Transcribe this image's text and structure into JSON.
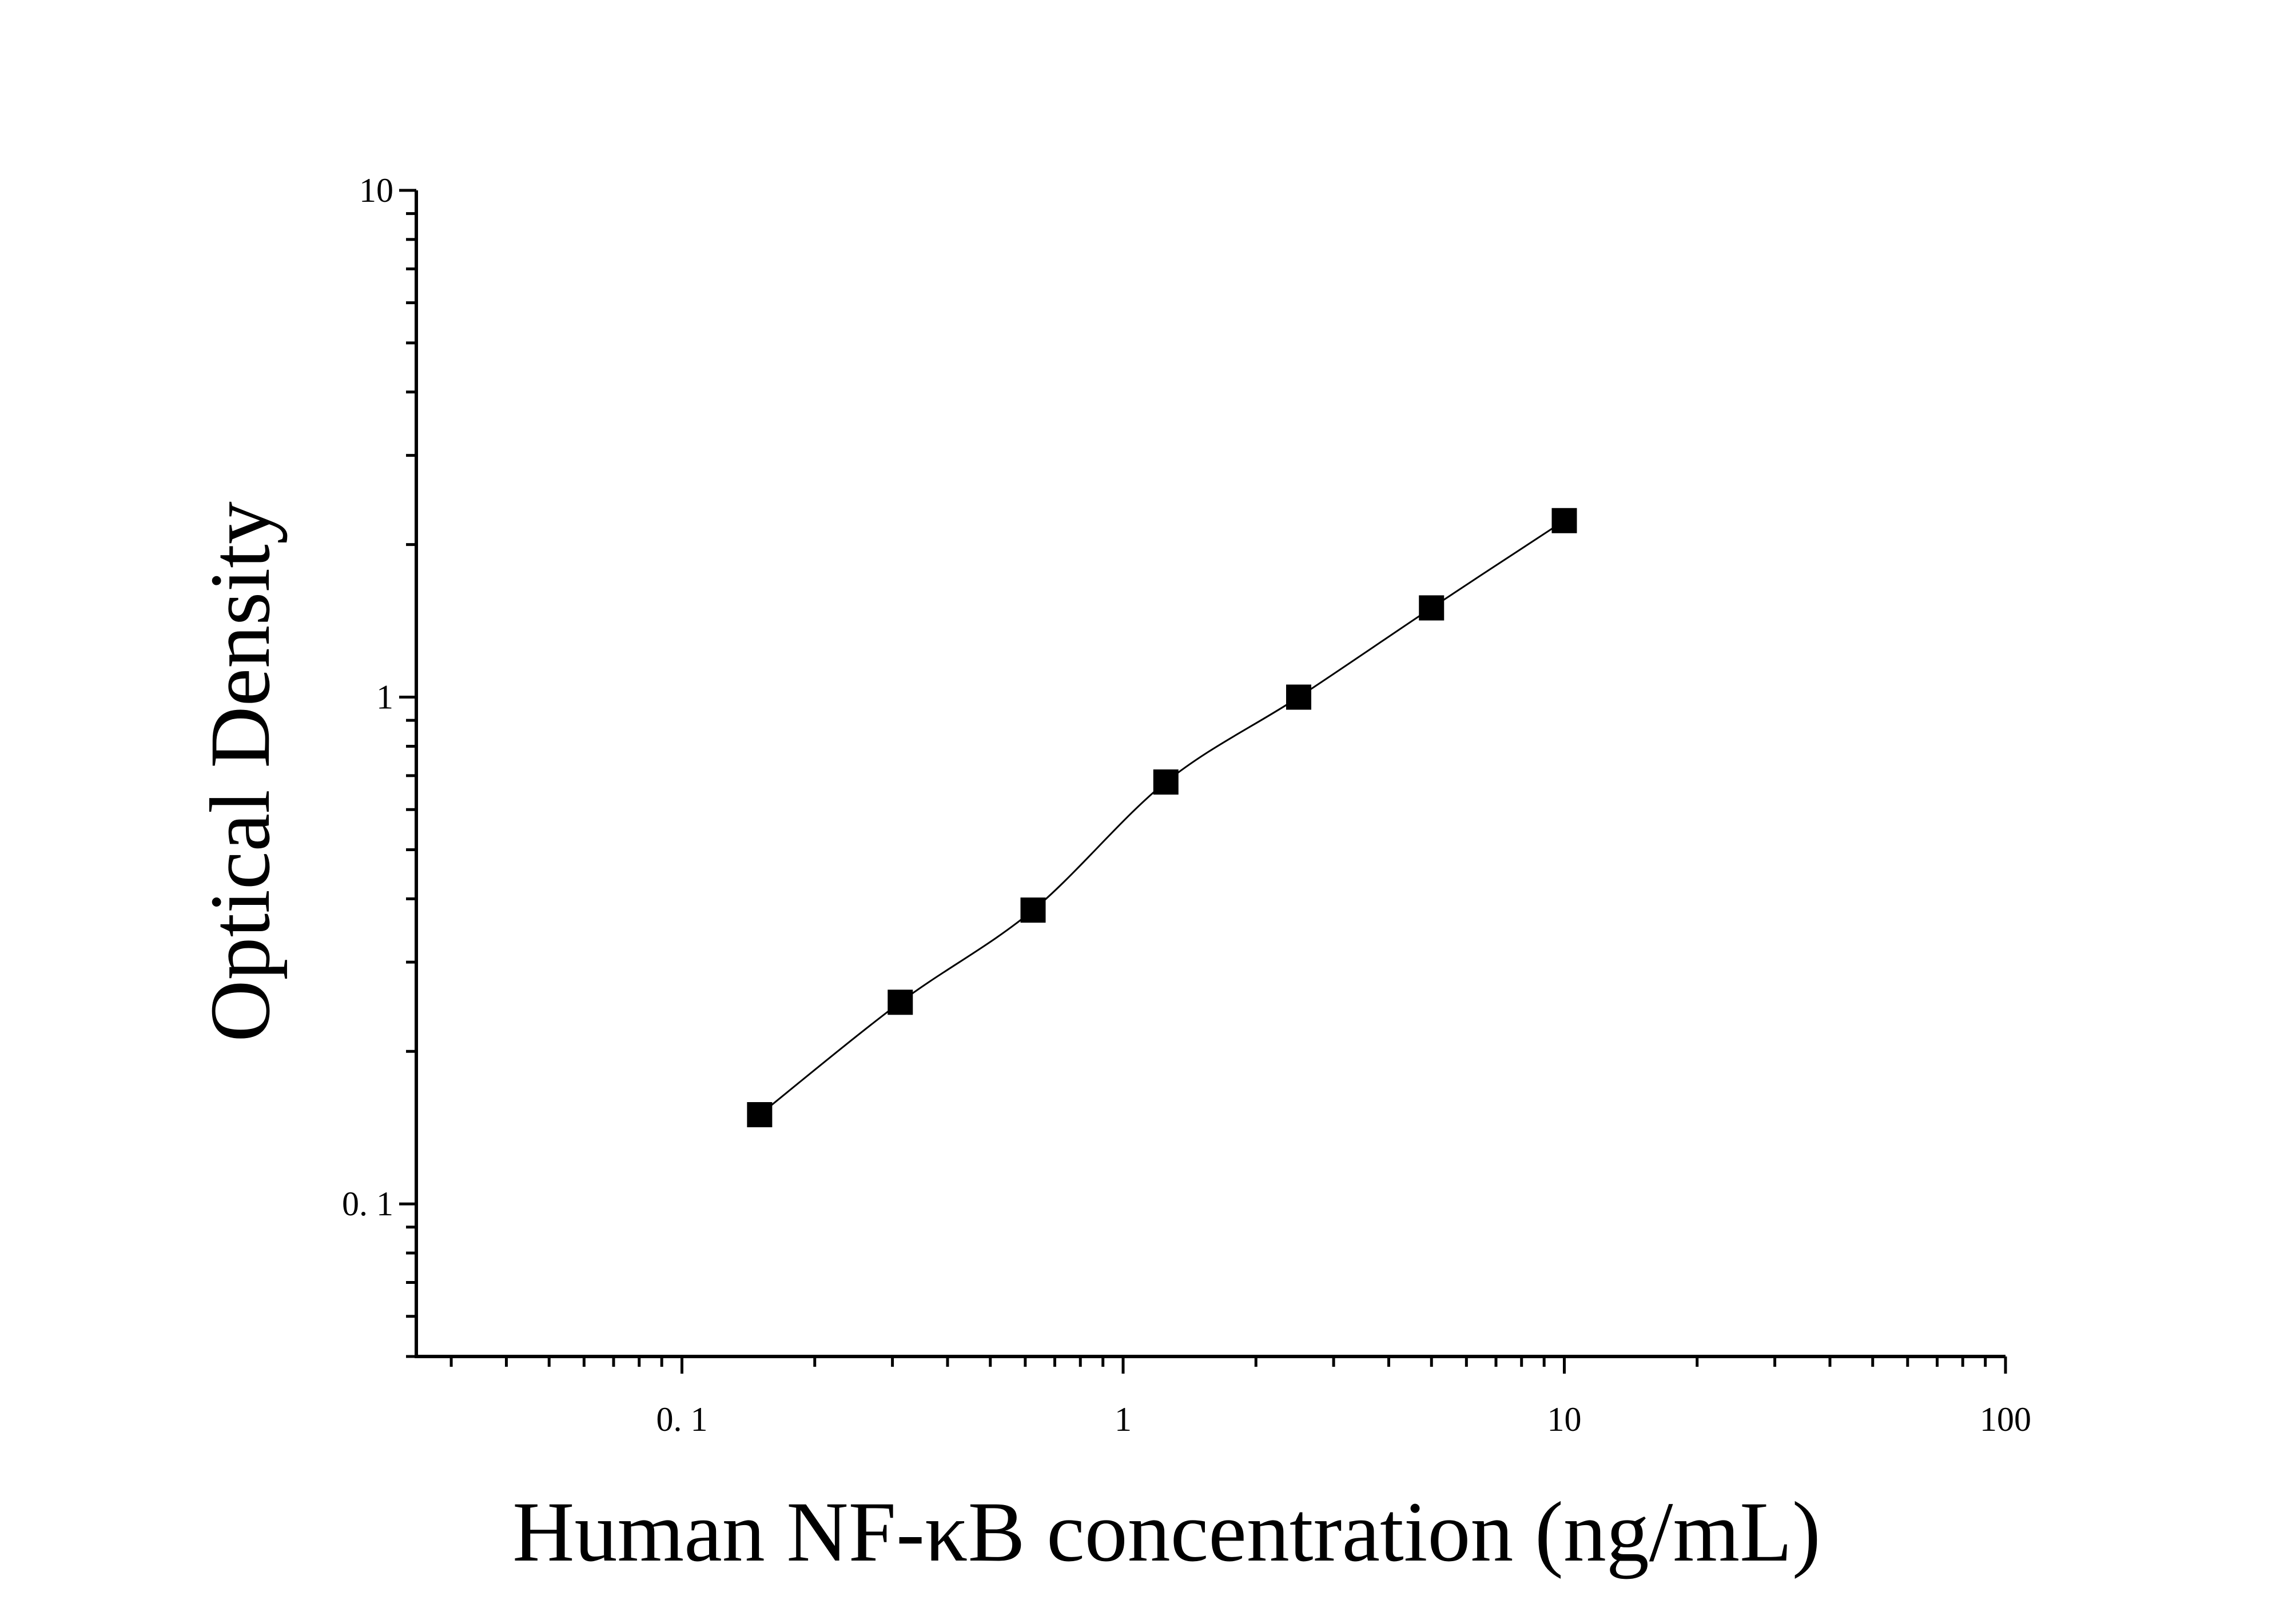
{
  "chart_data": {
    "type": "scatter",
    "title": "",
    "xlabel": "Human NF-κB concentration (ng/mL)",
    "ylabel": "Optical Density",
    "xscale": "log",
    "yscale": "log",
    "xlim": [
      0.025,
      100
    ],
    "ylim": [
      0.05,
      10
    ],
    "grid": false,
    "legend": "none",
    "x_ticks": [
      {
        "value": 0.1,
        "label": "0. 1"
      },
      {
        "value": 1,
        "label": "1"
      },
      {
        "value": 10,
        "label": "10"
      },
      {
        "value": 100,
        "label": "100"
      }
    ],
    "y_ticks": [
      {
        "value": 0.1,
        "label": "0. 1"
      },
      {
        "value": 1,
        "label": "1"
      },
      {
        "value": 10,
        "label": "10"
      }
    ],
    "series": [
      {
        "x": [
          0.15,
          0.3125,
          0.625,
          1.25,
          2.5,
          5,
          10
        ],
        "y": [
          0.15,
          0.25,
          0.38,
          0.68,
          1.0,
          1.5,
          2.23
        ],
        "marker": "square",
        "color": "#000000",
        "fit_line": true
      }
    ]
  }
}
